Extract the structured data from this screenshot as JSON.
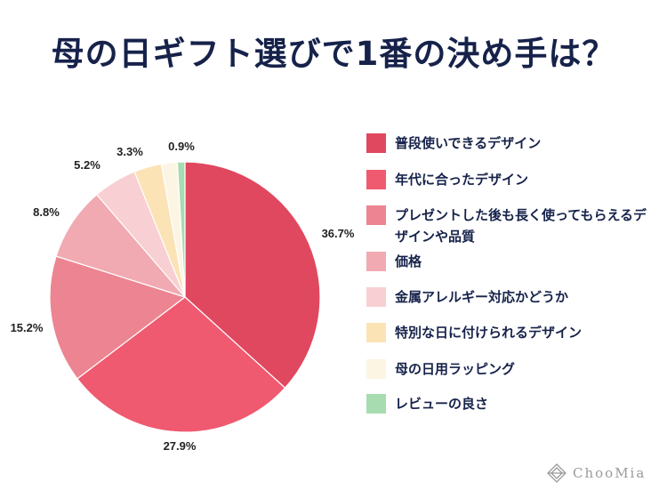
{
  "title": "母の日ギフト選びで1番の決め手は？",
  "chart_data": {
    "type": "pie",
    "title": "母の日ギフト選びで1番の決め手は？",
    "slices": [
      {
        "label": "普段使いできるデザイン",
        "value": 36.7,
        "display": "36.7%",
        "color": "#e0485f"
      },
      {
        "label": "年代に合ったデザイン",
        "value": 27.9,
        "display": "27.9%",
        "color": "#ef5a70"
      },
      {
        "label": "プレゼントした後も長く使ってもらえるデザインや品質",
        "value": 15.2,
        "display": "15.2%",
        "color": "#ec8591"
      },
      {
        "label": "価格",
        "value": 8.8,
        "display": "8.8%",
        "color": "#f1aab2"
      },
      {
        "label": "金属アレルギー対応かどうか",
        "value": 5.2,
        "display": "5.2%",
        "color": "#f8cfd2"
      },
      {
        "label": "特別な日に付けられるデザイン",
        "value": 3.3,
        "display": "3.3%",
        "color": "#fbe3b6"
      },
      {
        "label": "母の日用ラッピング",
        "value": 1.9,
        "display": "",
        "color": "#fdf5e4"
      },
      {
        "label": "レビューの良さ",
        "value": 0.9,
        "display": "0.9%",
        "color": "#a6dcb0"
      }
    ],
    "legend_position": "right"
  },
  "brand": {
    "name": "ChooMia"
  }
}
